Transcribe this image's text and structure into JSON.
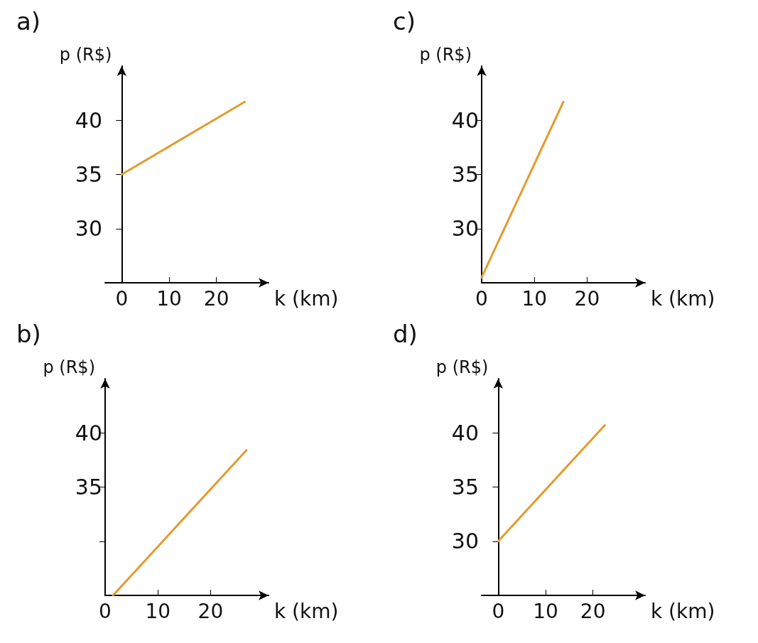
{
  "chart_data": [
    {
      "type": "line",
      "title": "a)",
      "xlabel": "k (km)",
      "ylabel": "p (R$)",
      "x": [
        0,
        26
      ],
      "values": [
        35,
        41.7
      ],
      "color": "#e39b2d",
      "xlim": [
        -3.5,
        31
      ],
      "xticks": [
        0,
        10,
        20
      ],
      "ylim": [
        25,
        45
      ],
      "yticks": [
        30,
        35,
        40
      ],
      "grid": false,
      "marker": "none"
    },
    {
      "type": "line",
      "title": "c)",
      "xlabel": "k (km)",
      "ylabel": "p (R$)",
      "x": [
        0,
        15.5
      ],
      "values": [
        25.5,
        41.7
      ],
      "color": "#e39b2d",
      "xlim": [
        0,
        31
      ],
      "xticks": [
        0,
        10,
        20
      ],
      "ylim": [
        25,
        45
      ],
      "yticks": [
        30,
        35,
        40
      ],
      "grid": false,
      "marker": "none"
    },
    {
      "type": "line",
      "title": "b)",
      "xlabel": "k (km)",
      "ylabel": "p (R$)",
      "x": [
        1.5,
        26.8
      ],
      "values": [
        25,
        38.4
      ],
      "color": "#e39b2d",
      "xlim": [
        0,
        31
      ],
      "xticks": [
        0,
        10,
        20
      ],
      "ylim": [
        25,
        45
      ],
      "yticks": [
        {
          "value": 30,
          "label": null
        },
        35,
        40
      ],
      "grid": false,
      "marker": "none"
    },
    {
      "type": "line",
      "title": "d)",
      "xlabel": "k (km)",
      "ylabel": "p (R$)",
      "x": [
        0,
        22.5
      ],
      "values": [
        30,
        40.7
      ],
      "color": "#e39b2d",
      "xlim": [
        -3.5,
        31
      ],
      "xticks": [
        0,
        10,
        20
      ],
      "ylim": [
        25,
        45
      ],
      "yticks": [
        30,
        35,
        40
      ],
      "grid": false,
      "marker": "none"
    }
  ]
}
